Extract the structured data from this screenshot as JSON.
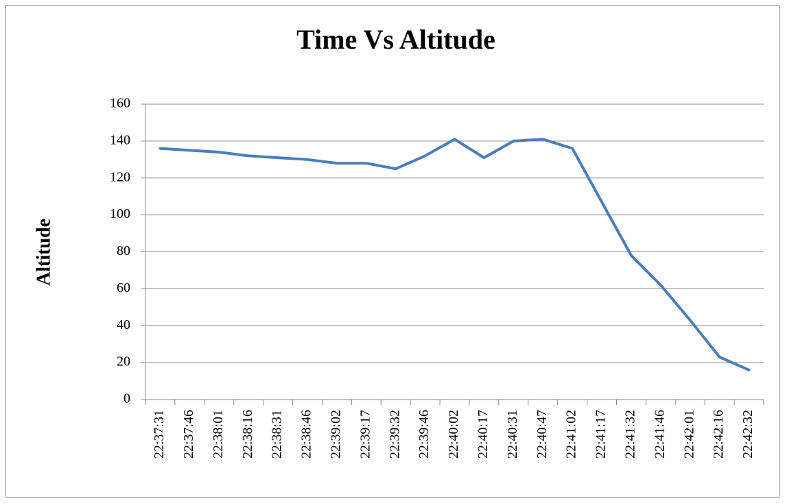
{
  "chart_data": {
    "type": "line",
    "title": "Time Vs Altitude",
    "y_label": "Altitude",
    "categories": [
      "22:37:31",
      "22:37:46",
      "22:38:01",
      "22:38:16",
      "22:38:31",
      "22:38:46",
      "22:39:02",
      "22:39:17",
      "22:39:32",
      "22:39:46",
      "22:40:02",
      "22:40:17",
      "22:40:31",
      "22:40:47",
      "22:41:02",
      "22:41:17",
      "22:41:32",
      "22:41:46",
      "22:42:01",
      "22:42:16",
      "22:42:32"
    ],
    "values": [
      136,
      135,
      134,
      132,
      131,
      130,
      128,
      128,
      125,
      132,
      141,
      131,
      140,
      141,
      136,
      107,
      78,
      62,
      43,
      23,
      16
    ],
    "color": "#4a7ebb",
    "ylim": [
      0,
      160
    ],
    "yticks": [
      0,
      20,
      40,
      60,
      80,
      100,
      120,
      140,
      160
    ],
    "grid": true
  }
}
